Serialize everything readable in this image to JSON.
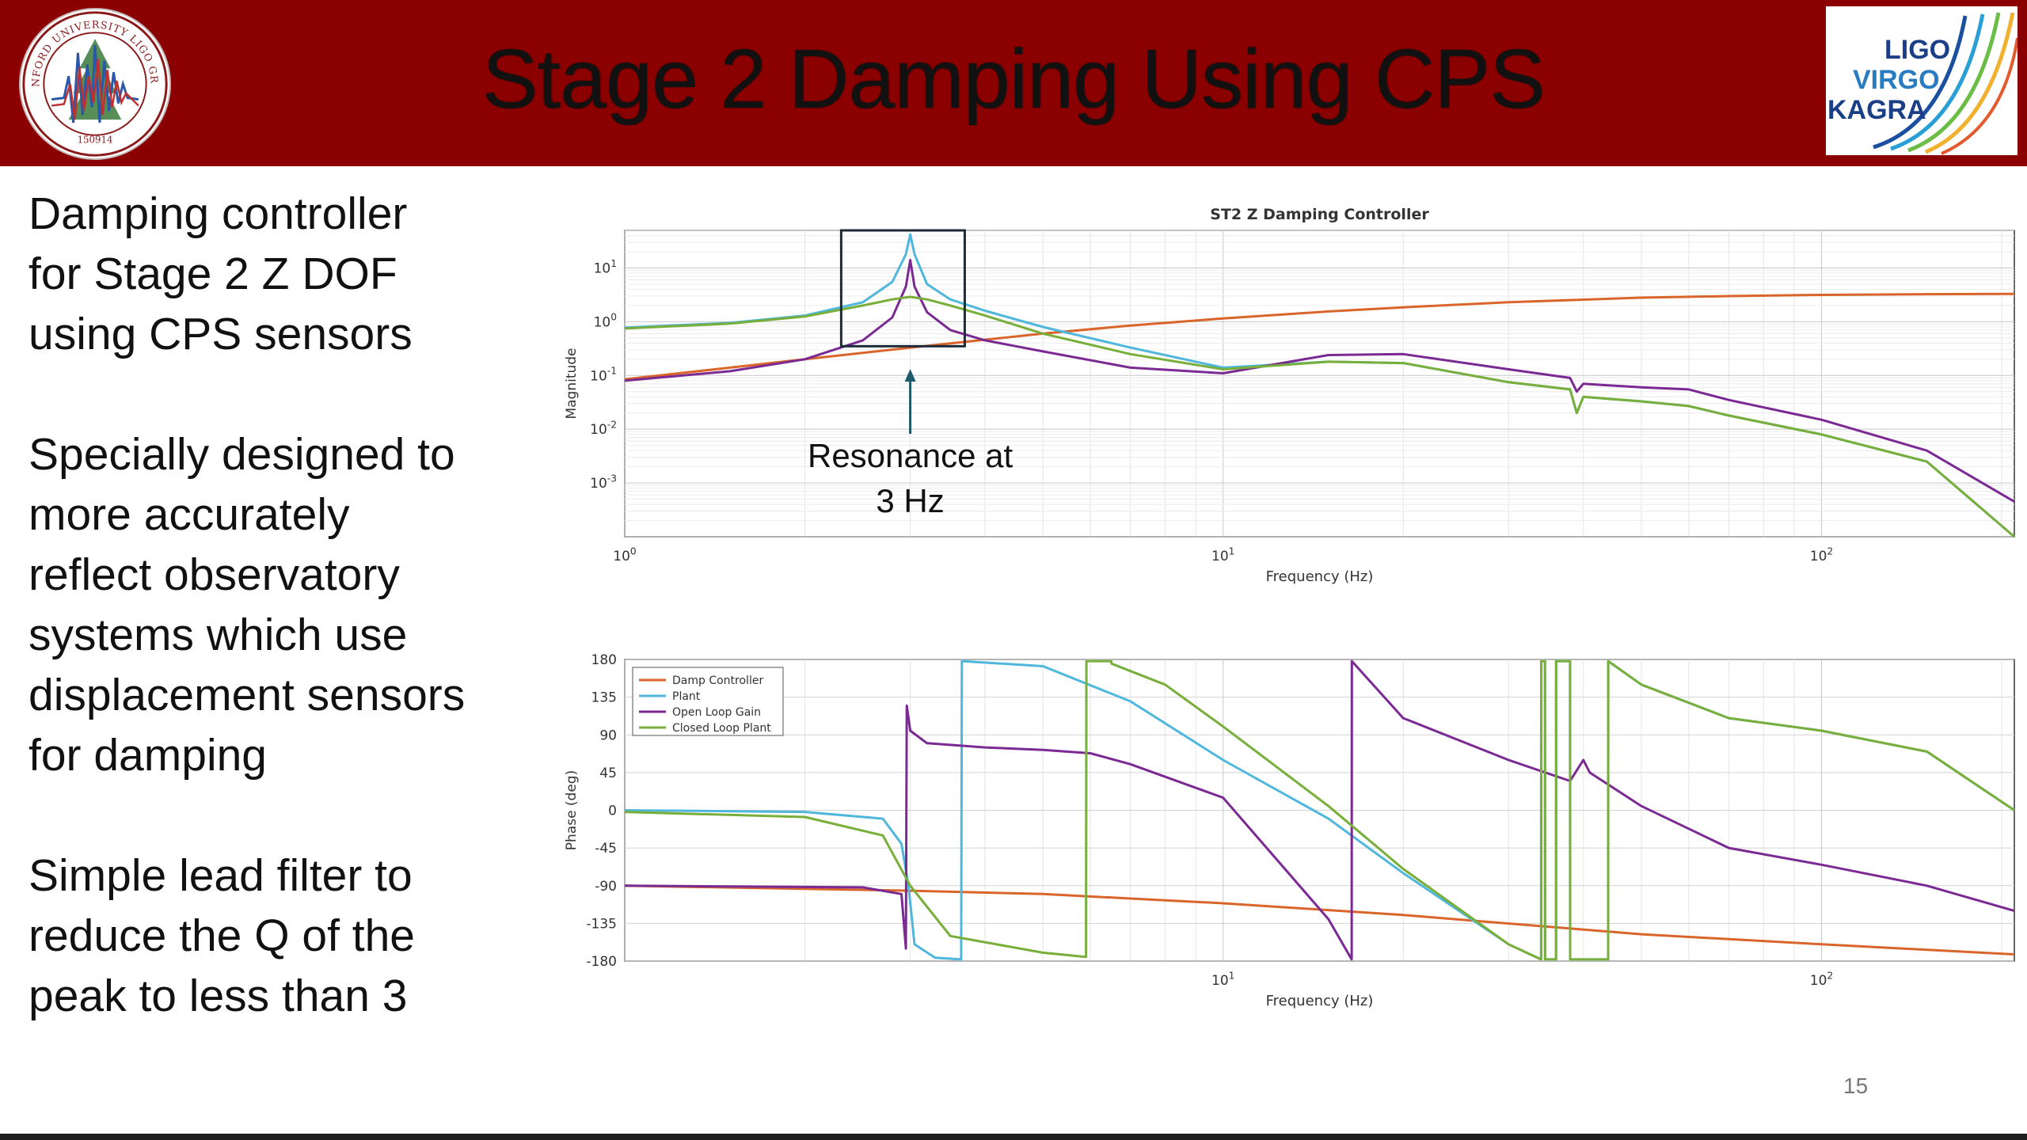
{
  "header": {
    "title": "Stage 2 Damping Using CPS",
    "seal": {
      "ring_text": "STANFORD UNIVERSITY LIGO GROUP",
      "date_text": "150914"
    },
    "logo": {
      "words": [
        "LIGO",
        "VIRGO",
        "KAGRA"
      ]
    }
  },
  "body_text": [
    "Damping controller\nfor Stage 2 Z DOF\nusing CPS sensors",
    "Specially designed to\nmore accurately\nreflect observatory\nsystems which use\ndisplacement sensors\nfor damping",
    "Simple lead filter to\nreduce the Q of the\npeak to less than 3"
  ],
  "slide_number": "15",
  "colors": {
    "header_bg": "#8b0000",
    "damp_controller": "#d9652b",
    "plant": "#4fb6dc",
    "open_loop_gain": "#7a2a92",
    "closed_loop_plant": "#78ae3a",
    "annotation": "#1e5a6b"
  },
  "chart_data": [
    {
      "type": "line",
      "title": "ST2 Z Damping Controller",
      "xlabel": "Frequency (Hz)",
      "ylabel": "Magnitude",
      "xscale": "log",
      "yscale": "log",
      "xlim": [
        1,
        210
      ],
      "ylim": [
        0.0001,
        50
      ],
      "x_ticks": [
        {
          "label": "10",
          "sup": "0"
        },
        {
          "label": "10",
          "sup": "1"
        },
        {
          "label": "10",
          "sup": "2"
        }
      ],
      "y_ticks": [
        {
          "label": "10",
          "sup": "1"
        },
        {
          "label": "10",
          "sup": "0"
        },
        {
          "label": "10",
          "sup": "-1"
        },
        {
          "label": "10",
          "sup": "-2"
        },
        {
          "label": "10",
          "sup": "-3"
        }
      ],
      "grid": true,
      "annotation": {
        "text_line1": "Resonance at",
        "text_line2": "3 Hz",
        "box_x_range": [
          2.3,
          3.7
        ],
        "box_y_range": [
          0.35,
          50
        ],
        "target_x": 3
      },
      "series": [
        {
          "key": "damp_controller",
          "color_key": "damp_controller",
          "x": [
            1,
            1.5,
            2,
            3,
            5,
            7,
            10,
            15,
            20,
            30,
            50,
            70,
            100,
            150,
            210
          ],
          "y": [
            0.085,
            0.14,
            0.2,
            0.33,
            0.6,
            0.85,
            1.15,
            1.55,
            1.85,
            2.3,
            2.8,
            3.0,
            3.15,
            3.25,
            3.3
          ]
        },
        {
          "key": "plant",
          "color_key": "plant",
          "x": [
            1,
            1.5,
            2,
            2.5,
            2.8,
            2.95,
            3.0,
            3.05,
            3.2,
            3.5,
            4,
            5,
            7,
            10,
            15,
            20,
            30,
            38,
            39,
            40,
            50,
            60,
            70,
            100,
            150,
            210
          ],
          "y": [
            0.78,
            0.95,
            1.3,
            2.3,
            5.5,
            18,
            42,
            18,
            5.0,
            2.6,
            1.6,
            0.8,
            0.33,
            0.14,
            0.18,
            0.17,
            0.075,
            0.055,
            0.02,
            0.04,
            0.033,
            0.027,
            0.018,
            0.008,
            0.0025,
            0.0001
          ]
        },
        {
          "key": "open_loop_gain",
          "color_key": "open_loop_gain",
          "x": [
            1,
            1.5,
            2,
            2.5,
            2.8,
            2.95,
            3.0,
            3.05,
            3.2,
            3.5,
            4,
            5,
            7,
            10,
            15,
            20,
            30,
            38,
            39,
            40,
            50,
            60,
            70,
            100,
            150,
            210
          ],
          "y": [
            0.08,
            0.12,
            0.2,
            0.45,
            1.2,
            4.5,
            14,
            4.5,
            1.5,
            0.7,
            0.45,
            0.28,
            0.14,
            0.11,
            0.24,
            0.25,
            0.13,
            0.09,
            0.05,
            0.07,
            0.06,
            0.055,
            0.035,
            0.015,
            0.004,
            0.00045
          ]
        },
        {
          "key": "closed_loop_plant",
          "color_key": "closed_loop_plant",
          "x": [
            1,
            1.5,
            2,
            2.5,
            2.8,
            3.0,
            3.2,
            3.5,
            4,
            5,
            7,
            10,
            15,
            20,
            30,
            38,
            39,
            40,
            50,
            60,
            70,
            100,
            150,
            210
          ],
          "y": [
            0.75,
            0.92,
            1.25,
            2.0,
            2.6,
            2.9,
            2.6,
            2.0,
            1.3,
            0.6,
            0.25,
            0.13,
            0.18,
            0.17,
            0.075,
            0.055,
            0.02,
            0.04,
            0.033,
            0.027,
            0.018,
            0.008,
            0.0025,
            0.0001
          ]
        }
      ]
    },
    {
      "type": "line",
      "xlabel": "Frequency (Hz)",
      "ylabel": "Phase (deg)",
      "xscale": "log",
      "xlim": [
        1,
        210
      ],
      "ylim": [
        -180,
        180
      ],
      "x_ticks": [
        {
          "label": "10",
          "sup": "1"
        },
        {
          "label": "10",
          "sup": "2"
        }
      ],
      "y_ticks": [
        "180",
        "135",
        "90",
        "45",
        "0",
        "-45",
        "-90",
        "-135",
        "-180"
      ],
      "grid": true,
      "legend": {
        "position": "top-left",
        "entries": [
          "Damp Controller",
          "Plant",
          "Open Loop Gain",
          "Closed Loop Plant"
        ]
      },
      "series": [
        {
          "key": "damp_controller",
          "color_key": "damp_controller",
          "x": [
            1,
            3,
            5,
            10,
            20,
            50,
            100,
            210
          ],
          "y": [
            -90,
            -96,
            -100,
            -111,
            -125,
            -148,
            -160,
            -172
          ]
        },
        {
          "key": "plant",
          "color_key": "plant",
          "x": [
            1,
            2,
            2.7,
            2.9,
            2.98,
            3.05,
            3.3,
            3.65,
            3.66,
            5,
            7,
            10,
            15,
            20,
            30,
            34,
            34.01,
            34.5,
            34.51,
            36,
            36.01,
            38,
            38.01,
            44,
            44.01,
            50,
            70,
            100,
            150,
            210
          ],
          "y": [
            0,
            -2,
            -10,
            -40,
            -90,
            -160,
            -176,
            -178,
            178,
            172,
            130,
            60,
            -10,
            -75,
            -160,
            -178,
            178,
            178,
            -178,
            -178,
            178,
            178,
            -178,
            -178,
            178,
            150,
            110,
            95,
            70,
            0
          ]
        },
        {
          "key": "open_loop_gain",
          "color_key": "open_loop_gain",
          "x": [
            1,
            2.5,
            2.9,
            2.95,
            2.96,
            3.0,
            3.2,
            4,
            5,
            6,
            7,
            10,
            15,
            16.4,
            16.41,
            20,
            30,
            38,
            40,
            41,
            50,
            70,
            100,
            150,
            210
          ],
          "y": [
            -90,
            -92,
            -100,
            -165,
            125,
            95,
            80,
            75,
            72,
            68,
            55,
            15,
            -130,
            -178,
            178,
            110,
            60,
            35,
            60,
            45,
            5,
            -45,
            -65,
            -90,
            -120
          ]
        },
        {
          "key": "closed_loop_plant",
          "color_key": "closed_loop_plant",
          "x": [
            1,
            2,
            2.7,
            3.0,
            3.5,
            5,
            5.9,
            5.91,
            6.5,
            6.51,
            8,
            10,
            15,
            20,
            30,
            34,
            34.01,
            34.5,
            34.51,
            36,
            36.01,
            38,
            38.01,
            44,
            44.01,
            50,
            70,
            100,
            150,
            210
          ],
          "y": [
            -2,
            -8,
            -30,
            -90,
            -150,
            -170,
            -175,
            178,
            178,
            175,
            150,
            100,
            5,
            -70,
            -160,
            -178,
            178,
            178,
            -178,
            -178,
            178,
            178,
            -178,
            -178,
            178,
            150,
            110,
            95,
            70,
            0
          ]
        }
      ]
    }
  ]
}
